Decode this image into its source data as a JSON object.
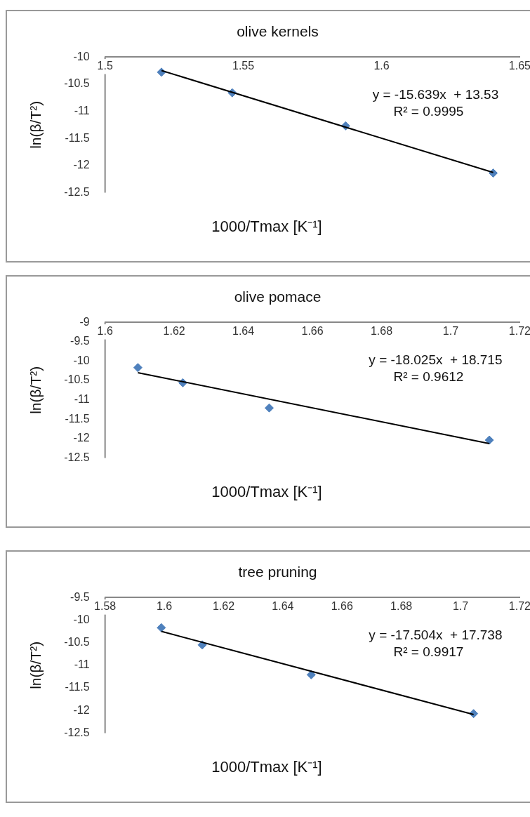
{
  "chart_data": [
    {
      "type": "scatter",
      "title": "olive kernels",
      "xlabel": "1000/Tmax [K⁻¹]",
      "ylabel": "ln(β/T²)",
      "xlim": [
        1.5,
        1.65
      ],
      "xticks": [
        1.5,
        1.55,
        1.6,
        1.65
      ],
      "ylim": [
        -12.5,
        -10
      ],
      "yticks": [
        -10,
        -10.5,
        -11,
        -11.5,
        -12,
        -12.5
      ],
      "grid": false,
      "legend": false,
      "annotations": [
        "y = -15.639x  + 13.53",
        "R² = 0.9995"
      ],
      "series": [
        {
          "x": [
            1.5204,
            1.546,
            1.587,
            1.6404
          ],
          "values": [
            -10.28,
            -10.66,
            -11.27,
            -12.14
          ],
          "color": "#4f81bd",
          "marker": "diamond"
        },
        {
          "type": "line",
          "x": [
            1.5204,
            1.6404
          ],
          "values": [
            -10.25,
            -12.13
          ],
          "color": "#000000",
          "marker": "none"
        }
      ]
    },
    {
      "type": "scatter",
      "title": "olive pomace",
      "xlabel": "1000/Tmax [K⁻¹]",
      "ylabel": "ln(β/T²)",
      "xlim": [
        1.6,
        1.72
      ],
      "xticks": [
        1.6,
        1.62,
        1.64,
        1.66,
        1.68,
        1.7,
        1.72
      ],
      "ylim": [
        -12.5,
        -9
      ],
      "yticks": [
        -9,
        -9.5,
        -10,
        -10.5,
        -11,
        -11.5,
        -12,
        -12.5
      ],
      "grid": false,
      "legend": false,
      "annotations": [
        "y = -18.025x  + 18.715",
        "R² = 0.9612"
      ],
      "series": [
        {
          "x": [
            1.6095,
            1.6225,
            1.6475,
            1.7112
          ],
          "values": [
            -10.17,
            -10.56,
            -11.21,
            -12.04
          ],
          "color": "#4f81bd",
          "marker": "diamond"
        },
        {
          "type": "line",
          "x": [
            1.6095,
            1.7112
          ],
          "values": [
            -10.3,
            -12.13
          ],
          "color": "#000000",
          "marker": "none"
        }
      ]
    },
    {
      "type": "scatter",
      "title": "tree pruning",
      "xlabel": "1000/Tmax [K⁻¹]",
      "ylabel": "ln(β/T²)",
      "xlim": [
        1.58,
        1.72
      ],
      "xticks": [
        1.58,
        1.6,
        1.62,
        1.64,
        1.66,
        1.68,
        1.7,
        1.72
      ],
      "ylim": [
        -12.5,
        -9.5
      ],
      "yticks": [
        -9.5,
        -10,
        -10.5,
        -11,
        -11.5,
        -12,
        -12.5
      ],
      "grid": false,
      "legend": false,
      "annotations": [
        "y = -17.504x  + 17.738",
        "R² = 0.9917"
      ],
      "series": [
        {
          "x": [
            1.599,
            1.6128,
            1.6496,
            1.7044
          ],
          "values": [
            -10.17,
            -10.55,
            -11.21,
            -12.07
          ],
          "color": "#4f81bd",
          "marker": "diamond"
        },
        {
          "type": "line",
          "x": [
            1.599,
            1.7044
          ],
          "values": [
            -10.25,
            -12.09
          ],
          "color": "#000000",
          "marker": "none"
        }
      ]
    }
  ]
}
